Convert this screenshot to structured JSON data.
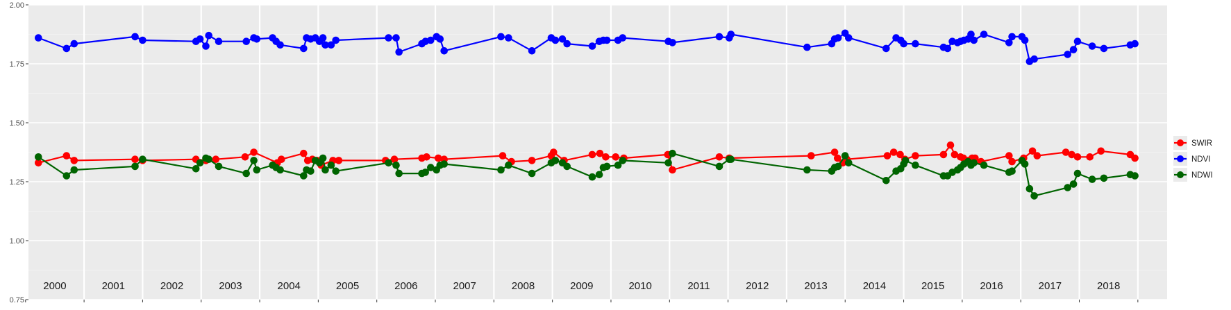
{
  "chart_data": {
    "type": "line",
    "title": "",
    "xlabel": "",
    "ylabel": "",
    "ylim": [
      0.75,
      2.0
    ],
    "xlim": [
      1999.55,
      2019.0
    ],
    "y_ticks": [
      "0.75",
      "1.00",
      "1.25",
      "1.50",
      "1.75",
      "2.00"
    ],
    "x_tick_labels": [
      "2000",
      "2001",
      "2002",
      "2003",
      "2004",
      "2005",
      "2006",
      "2007",
      "2008",
      "2009",
      "2010",
      "2011",
      "2012",
      "2013",
      "2014",
      "2015",
      "2016",
      "2017",
      "2018"
    ],
    "grid": true,
    "legend_position": "right",
    "series": [
      {
        "name": "SWIR",
        "color": "#ff0000",
        "points": [
          [
            1999.72,
            1.33
          ],
          [
            2000.2,
            1.36
          ],
          [
            2000.33,
            1.34
          ],
          [
            2001.37,
            1.345
          ],
          [
            2001.5,
            1.34
          ],
          [
            2002.41,
            1.345
          ],
          [
            2002.58,
            1.34
          ],
          [
            2002.75,
            1.345
          ],
          [
            2003.25,
            1.355
          ],
          [
            2003.4,
            1.375
          ],
          [
            2003.8,
            1.33
          ],
          [
            2003.87,
            1.345
          ],
          [
            2004.25,
            1.37
          ],
          [
            2004.32,
            1.34
          ],
          [
            2004.4,
            1.345
          ],
          [
            2004.48,
            1.34
          ],
          [
            2004.55,
            1.32
          ],
          [
            2004.75,
            1.34
          ],
          [
            2004.85,
            1.34
          ],
          [
            2005.65,
            1.34
          ],
          [
            2005.8,
            1.345
          ],
          [
            2006.27,
            1.35
          ],
          [
            2006.35,
            1.355
          ],
          [
            2006.55,
            1.35
          ],
          [
            2006.65,
            1.345
          ],
          [
            2007.65,
            1.36
          ],
          [
            2007.8,
            1.335
          ],
          [
            2008.15,
            1.34
          ],
          [
            2008.48,
            1.36
          ],
          [
            2008.52,
            1.375
          ],
          [
            2008.7,
            1.34
          ],
          [
            2009.18,
            1.365
          ],
          [
            2009.31,
            1.37
          ],
          [
            2009.41,
            1.355
          ],
          [
            2009.58,
            1.355
          ],
          [
            2009.72,
            1.35
          ],
          [
            2010.47,
            1.365
          ],
          [
            2010.55,
            1.3
          ],
          [
            2011.35,
            1.355
          ],
          [
            2011.52,
            1.35
          ],
          [
            2012.92,
            1.36
          ],
          [
            2013.32,
            1.375
          ],
          [
            2013.37,
            1.35
          ],
          [
            2013.46,
            1.33
          ],
          [
            2013.53,
            1.345
          ],
          [
            2014.22,
            1.36
          ],
          [
            2014.33,
            1.375
          ],
          [
            2014.44,
            1.365
          ],
          [
            2014.52,
            1.345
          ],
          [
            2014.7,
            1.36
          ],
          [
            2015.18,
            1.365
          ],
          [
            2015.3,
            1.405
          ],
          [
            2015.37,
            1.365
          ],
          [
            2015.47,
            1.355
          ],
          [
            2015.52,
            1.35
          ],
          [
            2015.6,
            1.34
          ],
          [
            2015.67,
            1.35
          ],
          [
            2015.72,
            1.35
          ],
          [
            2015.82,
            1.335
          ],
          [
            2016.3,
            1.36
          ],
          [
            2016.35,
            1.335
          ],
          [
            2016.55,
            1.35
          ],
          [
            2016.7,
            1.38
          ],
          [
            2016.78,
            1.36
          ],
          [
            2017.27,
            1.375
          ],
          [
            2017.37,
            1.365
          ],
          [
            2017.47,
            1.355
          ],
          [
            2017.68,
            1.355
          ],
          [
            2017.87,
            1.38
          ],
          [
            2018.37,
            1.365
          ],
          [
            2018.45,
            1.35
          ]
        ]
      },
      {
        "name": "NDVI",
        "color": "#0000ff",
        "points": [
          [
            1999.72,
            1.86
          ],
          [
            2000.2,
            1.815
          ],
          [
            2000.33,
            1.835
          ],
          [
            2001.37,
            1.865
          ],
          [
            2001.5,
            1.85
          ],
          [
            2002.41,
            1.845
          ],
          [
            2002.48,
            1.855
          ],
          [
            2002.58,
            1.825
          ],
          [
            2002.63,
            1.87
          ],
          [
            2002.8,
            1.845
          ],
          [
            2003.27,
            1.845
          ],
          [
            2003.4,
            1.86
          ],
          [
            2003.45,
            1.855
          ],
          [
            2003.72,
            1.86
          ],
          [
            2003.78,
            1.845
          ],
          [
            2003.85,
            1.83
          ],
          [
            2004.25,
            1.815
          ],
          [
            2004.3,
            1.86
          ],
          [
            2004.37,
            1.855
          ],
          [
            2004.45,
            1.86
          ],
          [
            2004.52,
            1.845
          ],
          [
            2004.58,
            1.86
          ],
          [
            2004.62,
            1.83
          ],
          [
            2004.72,
            1.83
          ],
          [
            2004.8,
            1.85
          ],
          [
            2005.7,
            1.86
          ],
          [
            2005.83,
            1.86
          ],
          [
            2005.88,
            1.8
          ],
          [
            2006.27,
            1.835
          ],
          [
            2006.33,
            1.845
          ],
          [
            2006.42,
            1.85
          ],
          [
            2006.52,
            1.865
          ],
          [
            2006.58,
            1.855
          ],
          [
            2006.65,
            1.805
          ],
          [
            2007.62,
            1.865
          ],
          [
            2007.75,
            1.86
          ],
          [
            2008.15,
            1.805
          ],
          [
            2008.48,
            1.86
          ],
          [
            2008.55,
            1.85
          ],
          [
            2008.67,
            1.855
          ],
          [
            2008.75,
            1.835
          ],
          [
            2009.18,
            1.825
          ],
          [
            2009.3,
            1.845
          ],
          [
            2009.37,
            1.85
          ],
          [
            2009.43,
            1.85
          ],
          [
            2009.62,
            1.85
          ],
          [
            2009.7,
            1.86
          ],
          [
            2010.48,
            1.845
          ],
          [
            2010.55,
            1.84
          ],
          [
            2011.35,
            1.865
          ],
          [
            2011.52,
            1.86
          ],
          [
            2011.55,
            1.875
          ],
          [
            2012.85,
            1.82
          ],
          [
            2013.27,
            1.835
          ],
          [
            2013.32,
            1.855
          ],
          [
            2013.38,
            1.86
          ],
          [
            2013.5,
            1.88
          ],
          [
            2013.56,
            1.86
          ],
          [
            2014.2,
            1.815
          ],
          [
            2014.37,
            1.86
          ],
          [
            2014.45,
            1.85
          ],
          [
            2014.5,
            1.835
          ],
          [
            2014.7,
            1.835
          ],
          [
            2015.18,
            1.82
          ],
          [
            2015.25,
            1.815
          ],
          [
            2015.33,
            1.845
          ],
          [
            2015.42,
            1.84
          ],
          [
            2015.47,
            1.845
          ],
          [
            2015.53,
            1.85
          ],
          [
            2015.6,
            1.855
          ],
          [
            2015.65,
            1.875
          ],
          [
            2015.7,
            1.85
          ],
          [
            2015.87,
            1.875
          ],
          [
            2016.3,
            1.84
          ],
          [
            2016.35,
            1.865
          ],
          [
            2016.52,
            1.865
          ],
          [
            2016.57,
            1.85
          ],
          [
            2016.65,
            1.76
          ],
          [
            2016.73,
            1.77
          ],
          [
            2017.3,
            1.79
          ],
          [
            2017.4,
            1.81
          ],
          [
            2017.47,
            1.845
          ],
          [
            2017.72,
            1.825
          ],
          [
            2017.92,
            1.815
          ],
          [
            2018.37,
            1.83
          ],
          [
            2018.45,
            1.835
          ]
        ]
      },
      {
        "name": "NDWI",
        "color": "#006400",
        "points": [
          [
            1999.72,
            1.355
          ],
          [
            2000.2,
            1.275
          ],
          [
            2000.33,
            1.3
          ],
          [
            2001.37,
            1.315
          ],
          [
            2001.5,
            1.345
          ],
          [
            2002.41,
            1.305
          ],
          [
            2002.48,
            1.33
          ],
          [
            2002.58,
            1.35
          ],
          [
            2002.63,
            1.345
          ],
          [
            2002.8,
            1.315
          ],
          [
            2003.27,
            1.285
          ],
          [
            2003.4,
            1.34
          ],
          [
            2003.45,
            1.3
          ],
          [
            2003.72,
            1.32
          ],
          [
            2003.78,
            1.31
          ],
          [
            2003.85,
            1.3
          ],
          [
            2004.25,
            1.275
          ],
          [
            2004.3,
            1.3
          ],
          [
            2004.37,
            1.295
          ],
          [
            2004.45,
            1.34
          ],
          [
            2004.52,
            1.33
          ],
          [
            2004.58,
            1.35
          ],
          [
            2004.62,
            1.3
          ],
          [
            2004.72,
            1.32
          ],
          [
            2004.8,
            1.295
          ],
          [
            2005.7,
            1.33
          ],
          [
            2005.83,
            1.32
          ],
          [
            2005.88,
            1.285
          ],
          [
            2006.27,
            1.285
          ],
          [
            2006.33,
            1.29
          ],
          [
            2006.42,
            1.31
          ],
          [
            2006.52,
            1.3
          ],
          [
            2006.58,
            1.32
          ],
          [
            2006.65,
            1.325
          ],
          [
            2007.62,
            1.3
          ],
          [
            2007.75,
            1.32
          ],
          [
            2008.15,
            1.285
          ],
          [
            2008.48,
            1.33
          ],
          [
            2008.55,
            1.34
          ],
          [
            2008.67,
            1.33
          ],
          [
            2008.75,
            1.315
          ],
          [
            2009.18,
            1.27
          ],
          [
            2009.3,
            1.28
          ],
          [
            2009.37,
            1.31
          ],
          [
            2009.43,
            1.315
          ],
          [
            2009.62,
            1.32
          ],
          [
            2009.7,
            1.34
          ],
          [
            2010.48,
            1.33
          ],
          [
            2010.55,
            1.37
          ],
          [
            2011.35,
            1.315
          ],
          [
            2011.52,
            1.345
          ],
          [
            2011.55,
            1.345
          ],
          [
            2012.85,
            1.3
          ],
          [
            2013.27,
            1.295
          ],
          [
            2013.32,
            1.31
          ],
          [
            2013.38,
            1.315
          ],
          [
            2013.5,
            1.36
          ],
          [
            2013.56,
            1.33
          ],
          [
            2014.2,
            1.255
          ],
          [
            2014.37,
            1.295
          ],
          [
            2014.45,
            1.305
          ],
          [
            2014.5,
            1.325
          ],
          [
            2014.53,
            1.34
          ],
          [
            2014.7,
            1.32
          ],
          [
            2015.18,
            1.275
          ],
          [
            2015.25,
            1.275
          ],
          [
            2015.33,
            1.29
          ],
          [
            2015.42,
            1.3
          ],
          [
            2015.47,
            1.31
          ],
          [
            2015.53,
            1.325
          ],
          [
            2015.6,
            1.335
          ],
          [
            2015.65,
            1.32
          ],
          [
            2015.7,
            1.33
          ],
          [
            2015.87,
            1.32
          ],
          [
            2016.3,
            1.29
          ],
          [
            2016.35,
            1.295
          ],
          [
            2016.52,
            1.34
          ],
          [
            2016.57,
            1.325
          ],
          [
            2016.65,
            1.22
          ],
          [
            2016.73,
            1.19
          ],
          [
            2017.3,
            1.225
          ],
          [
            2017.4,
            1.24
          ],
          [
            2017.47,
            1.285
          ],
          [
            2017.72,
            1.26
          ],
          [
            2017.92,
            1.265
          ],
          [
            2018.37,
            1.28
          ],
          [
            2018.45,
            1.275
          ]
        ]
      }
    ]
  }
}
